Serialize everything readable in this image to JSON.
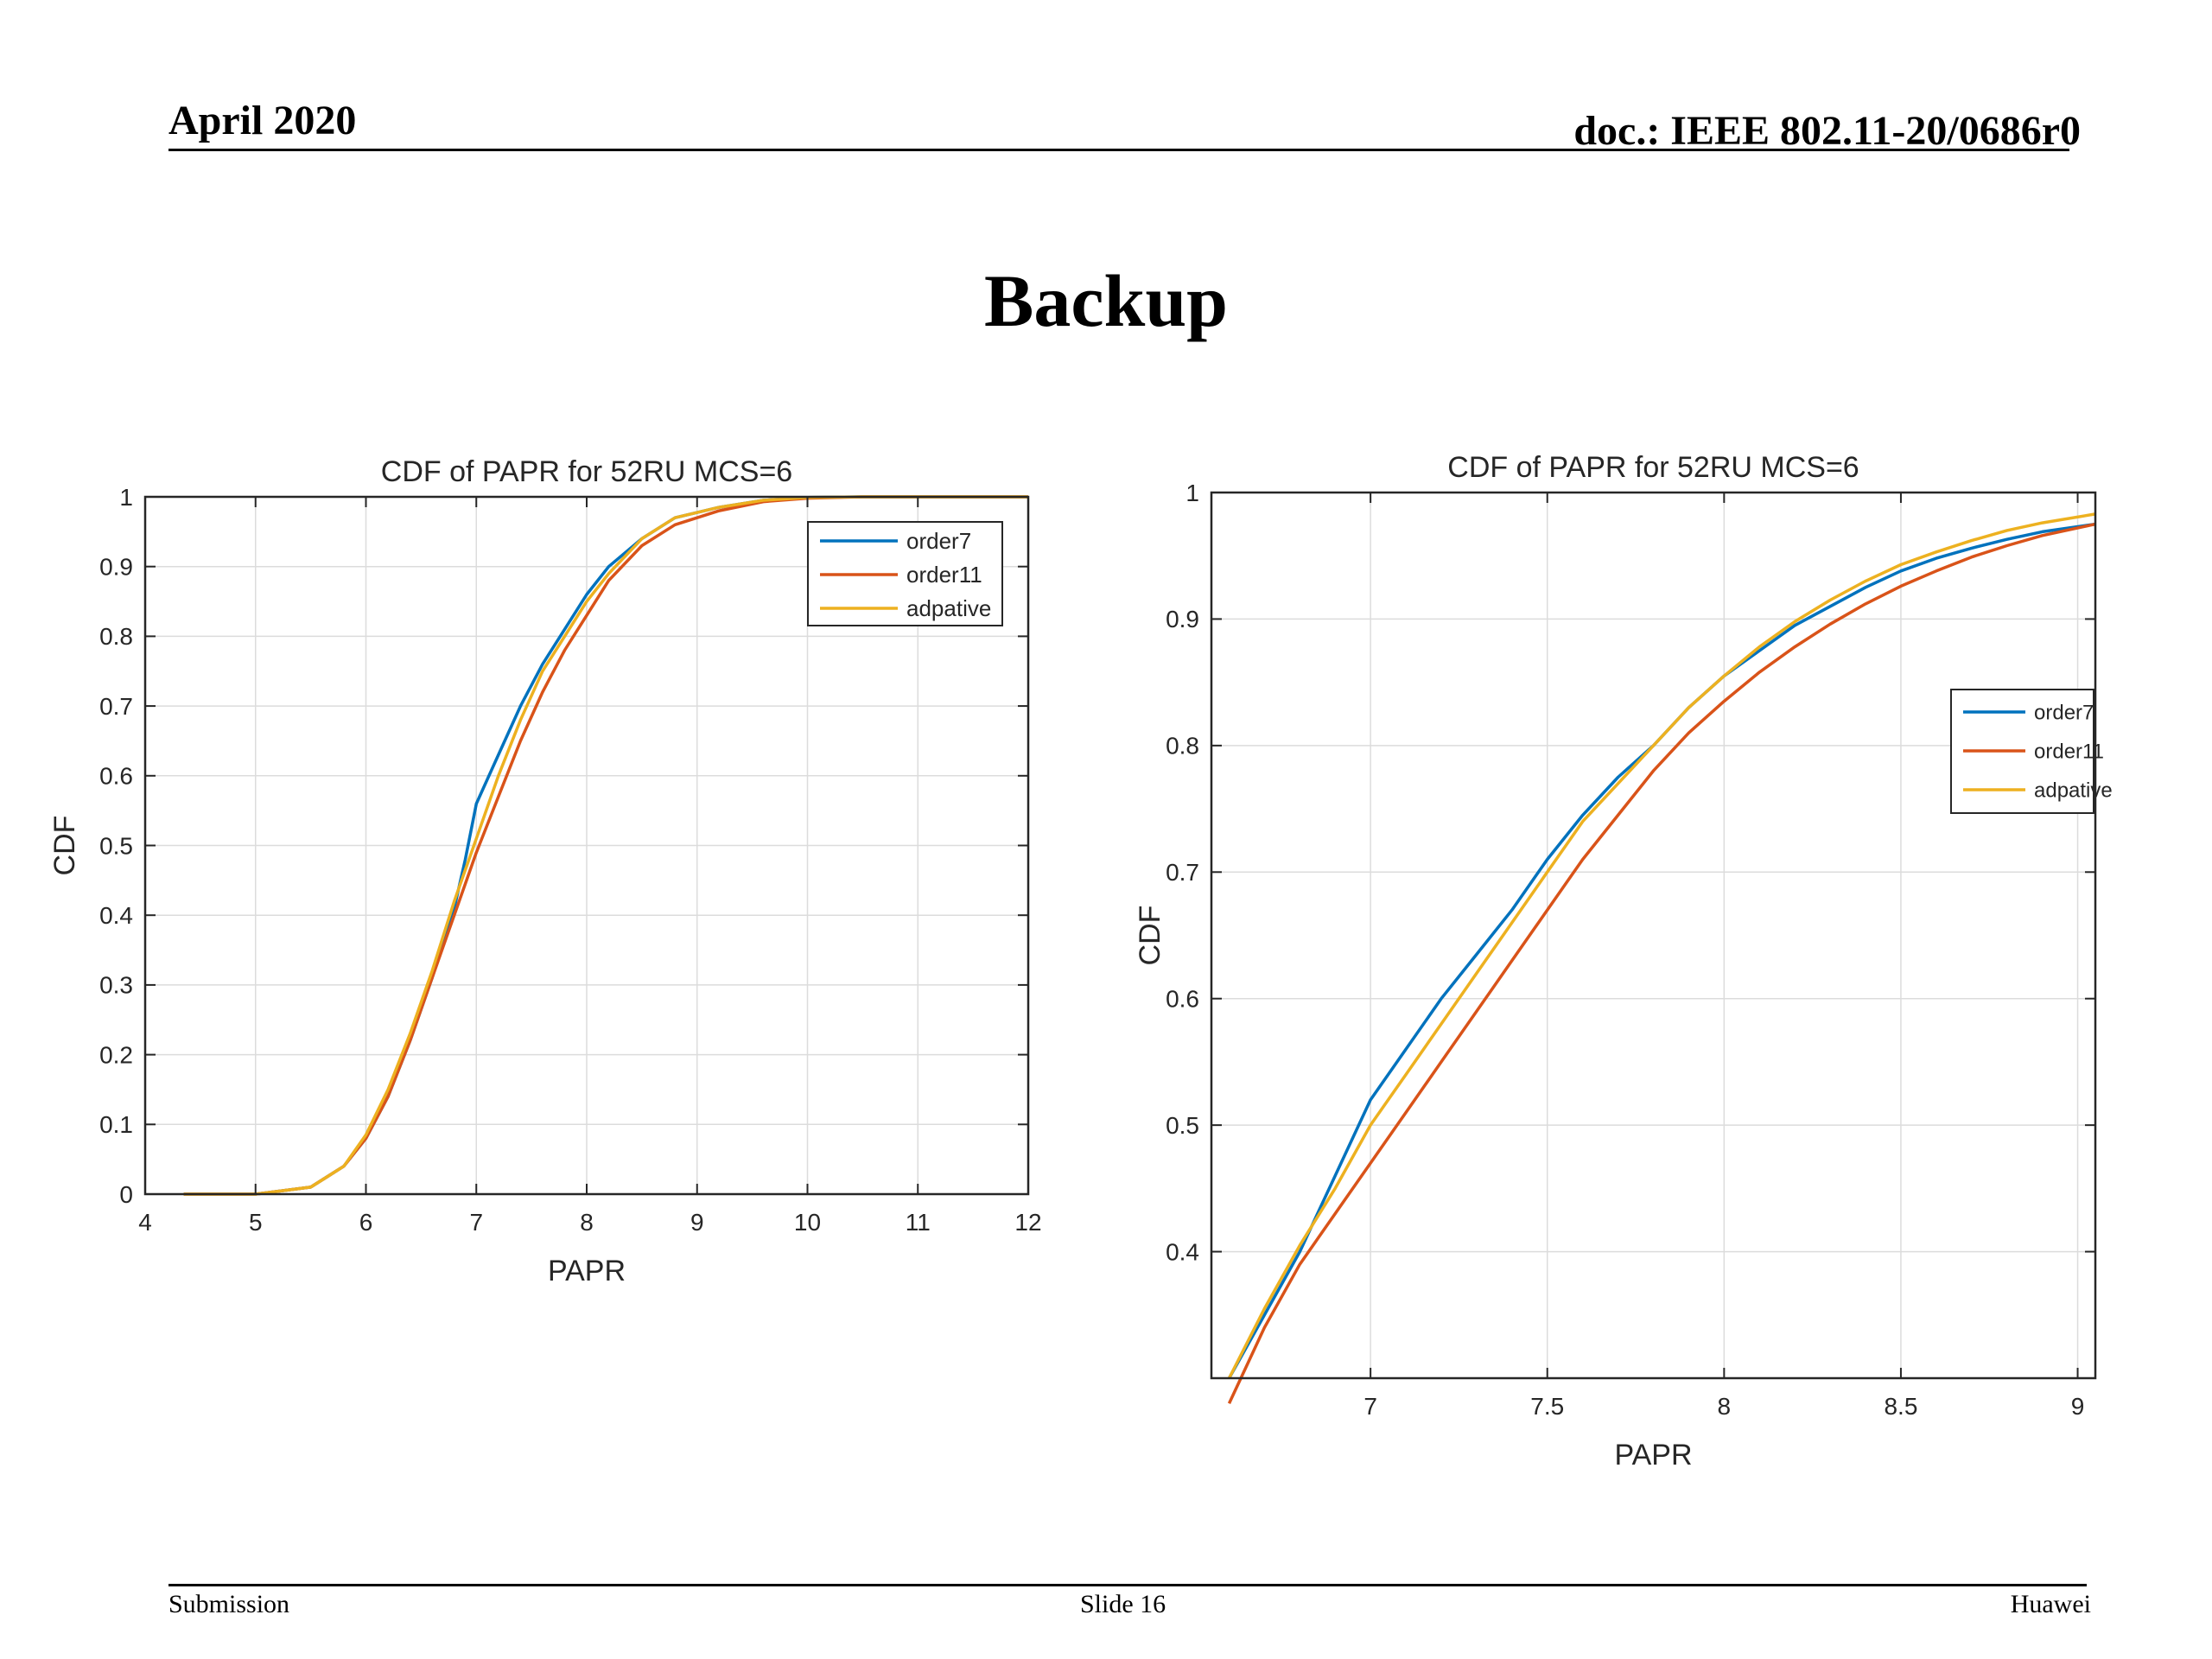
{
  "header": {
    "date": "April 2020",
    "doc": "doc.: IEEE 802.11-20/0686r0"
  },
  "slide": {
    "title": "Backup"
  },
  "footer": {
    "left": "Submission",
    "center": "Slide 16",
    "right": "Huawei"
  },
  "colors": {
    "order7": "#0072BD",
    "order11": "#D95319",
    "adpative": "#EDB120"
  },
  "chart_data": [
    {
      "type": "line",
      "title": "CDF of PAPR for 52RU MCS=6",
      "xlabel": "PAPR",
      "ylabel": "CDF",
      "xlim": [
        4,
        12
      ],
      "ylim": [
        0,
        1
      ],
      "xticks": [
        "4",
        "5",
        "6",
        "7",
        "8",
        "9",
        "10",
        "11",
        "12"
      ],
      "yticks": [
        "0",
        "0.1",
        "0.2",
        "0.3",
        "0.4",
        "0.5",
        "0.6",
        "0.7",
        "0.8",
        "0.9",
        "1"
      ],
      "grid": true,
      "legend_position": "top-right",
      "series": [
        {
          "name": "order7",
          "x": [
            4.35,
            5.0,
            5.5,
            5.8,
            6.0,
            6.2,
            6.4,
            6.6,
            6.8,
            6.9,
            7.0,
            7.2,
            7.4,
            7.6,
            7.8,
            8.0,
            8.2,
            8.5,
            8.8,
            9.2,
            9.6,
            10.0,
            10.5,
            12.0
          ],
          "y": [
            0,
            0,
            0.01,
            0.04,
            0.08,
            0.14,
            0.22,
            0.31,
            0.41,
            0.48,
            0.56,
            0.63,
            0.7,
            0.76,
            0.81,
            0.86,
            0.9,
            0.94,
            0.97,
            0.985,
            0.995,
            0.999,
            1.0,
            1.0
          ]
        },
        {
          "name": "order11",
          "x": [
            4.35,
            5.0,
            5.5,
            5.8,
            6.0,
            6.2,
            6.4,
            6.6,
            6.8,
            7.0,
            7.2,
            7.4,
            7.6,
            7.8,
            8.0,
            8.2,
            8.5,
            8.8,
            9.2,
            9.6,
            10.0,
            10.5,
            12.0
          ],
          "y": [
            0,
            0,
            0.01,
            0.04,
            0.08,
            0.14,
            0.22,
            0.31,
            0.4,
            0.49,
            0.57,
            0.65,
            0.72,
            0.78,
            0.83,
            0.88,
            0.93,
            0.96,
            0.98,
            0.993,
            0.998,
            1.0,
            1.0
          ]
        },
        {
          "name": "adpative",
          "x": [
            4.35,
            5.0,
            5.5,
            5.8,
            6.0,
            6.2,
            6.4,
            6.6,
            6.8,
            7.0,
            7.2,
            7.4,
            7.6,
            7.8,
            8.0,
            8.2,
            8.5,
            8.8,
            9.2,
            9.6,
            10.0,
            10.5,
            12.0
          ],
          "y": [
            0,
            0,
            0.01,
            0.04,
            0.085,
            0.15,
            0.23,
            0.32,
            0.42,
            0.51,
            0.6,
            0.68,
            0.75,
            0.8,
            0.85,
            0.89,
            0.94,
            0.97,
            0.985,
            0.995,
            0.999,
            1.0,
            1.0
          ]
        }
      ]
    },
    {
      "type": "line",
      "title": "CDF of PAPR for 52RU MCS=6",
      "xlabel": "PAPR",
      "ylabel": "CDF",
      "xlim": [
        6.55,
        9.05
      ],
      "ylim": [
        0.3,
        1
      ],
      "xticks": [
        "7",
        "7.5",
        "8",
        "8.5",
        "9"
      ],
      "xtick_values": [
        7,
        7.5,
        8,
        8.5,
        9
      ],
      "yticks": [
        "0.4",
        "0.5",
        "0.6",
        "0.7",
        "0.8",
        "0.9",
        "1"
      ],
      "ytick_values": [
        0.4,
        0.5,
        0.6,
        0.7,
        0.8,
        0.9,
        1.0
      ],
      "grid": true,
      "legend_position": "right",
      "series": [
        {
          "name": "order7",
          "x": [
            6.6,
            6.7,
            6.8,
            6.9,
            7.0,
            7.1,
            7.2,
            7.3,
            7.4,
            7.5,
            7.6,
            7.7,
            7.8,
            7.9,
            8.0,
            8.1,
            8.2,
            8.3,
            8.4,
            8.5,
            8.6,
            8.7,
            8.8,
            8.9,
            9.05
          ],
          "y": [
            0.3,
            0.35,
            0.4,
            0.46,
            0.52,
            0.56,
            0.6,
            0.635,
            0.67,
            0.71,
            0.745,
            0.775,
            0.8,
            0.83,
            0.855,
            0.875,
            0.895,
            0.91,
            0.925,
            0.938,
            0.948,
            0.956,
            0.963,
            0.969,
            0.975
          ]
        },
        {
          "name": "order11",
          "x": [
            6.6,
            6.7,
            6.8,
            6.9,
            7.0,
            7.1,
            7.2,
            7.3,
            7.4,
            7.5,
            7.6,
            7.7,
            7.8,
            7.9,
            8.0,
            8.1,
            8.2,
            8.3,
            8.4,
            8.5,
            8.6,
            8.7,
            8.8,
            8.9,
            9.05
          ],
          "y": [
            0.28,
            0.34,
            0.39,
            0.43,
            0.47,
            0.51,
            0.55,
            0.59,
            0.63,
            0.67,
            0.71,
            0.745,
            0.78,
            0.81,
            0.835,
            0.858,
            0.878,
            0.896,
            0.912,
            0.926,
            0.938,
            0.949,
            0.958,
            0.966,
            0.975
          ]
        },
        {
          "name": "adpative",
          "x": [
            6.6,
            6.7,
            6.8,
            6.9,
            7.0,
            7.1,
            7.2,
            7.3,
            7.4,
            7.5,
            7.6,
            7.7,
            7.8,
            7.9,
            8.0,
            8.1,
            8.2,
            8.3,
            8.4,
            8.5,
            8.6,
            8.7,
            8.8,
            8.9,
            9.05
          ],
          "y": [
            0.3,
            0.355,
            0.405,
            0.45,
            0.5,
            0.54,
            0.58,
            0.62,
            0.66,
            0.7,
            0.74,
            0.77,
            0.8,
            0.83,
            0.855,
            0.878,
            0.898,
            0.915,
            0.93,
            0.943,
            0.953,
            0.962,
            0.97,
            0.976,
            0.983
          ]
        }
      ]
    }
  ]
}
